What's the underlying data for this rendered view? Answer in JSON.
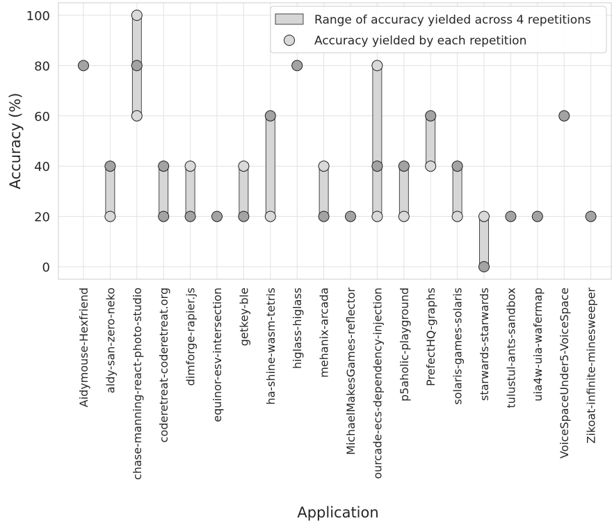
{
  "chart_data": {
    "type": "scatter",
    "xlabel": "Application",
    "ylabel": "Accuracy (%)",
    "ylim": [
      -5,
      105
    ],
    "yticks": [
      0,
      20,
      40,
      60,
      80,
      100
    ],
    "grid": true,
    "legend_position": "top-right",
    "legend": {
      "range": "Range of accuracy yielded across 4 repetitions",
      "points": "Accuracy yielded by each repetition"
    },
    "colors": {
      "range_fill": "#d6d6d6",
      "point_fill": "#d9d9d9",
      "point_overlap_fill": "#a3a3a3",
      "edge": "#1f1f1f",
      "grid": "#e1e1e1",
      "spine": "#cccccc"
    },
    "categories": [
      "Aidymouse-Hexfriend",
      "aldy-san-zero-neko",
      "chase-manning-react-photo-studio",
      "coderetreat-coderetreat.org",
      "dimforge-rapier.js",
      "equinor-esv-intersection",
      "getkey-ble",
      "ha-shine-wasm-tetris",
      "higlass-higlass",
      "mehanix-arcada",
      "MichaelMakesGames-reflector",
      "ourcade-ecs-dependency-injection",
      "p5aholic-playground",
      "PrefectHQ-graphs",
      "solaris-games-solaris",
      "starwards-starwards",
      "tulustul-ants-sandbox",
      "uia4w-uia-wafermap",
      "VoiceSpaceUnder5-VoiceSpace",
      "Zikoat-infinite-minesweeper"
    ],
    "series": [
      {
        "name": "Accuracy yielded by each repetition",
        "values": [
          [
            80,
            80,
            80,
            80
          ],
          [
            20,
            40,
            40,
            40
          ],
          [
            60,
            80,
            80,
            100
          ],
          [
            20,
            20,
            40,
            40
          ],
          [
            20,
            20,
            20,
            40
          ],
          [
            20,
            20,
            20,
            20
          ],
          [
            20,
            20,
            20,
            40
          ],
          [
            20,
            60,
            60,
            60
          ],
          [
            80,
            80,
            80,
            80
          ],
          [
            20,
            20,
            20,
            40
          ],
          [
            20,
            20,
            20,
            20
          ],
          [
            20,
            40,
            40,
            80
          ],
          [
            20,
            40,
            40,
            40
          ],
          [
            40,
            60,
            60,
            60
          ],
          [
            20,
            40,
            40,
            40
          ],
          [
            0,
            0,
            0,
            20
          ],
          [
            20,
            20,
            20,
            20
          ],
          [
            20,
            20,
            20,
            20
          ],
          [
            60,
            60,
            60,
            60
          ],
          [
            20,
            20,
            20,
            20
          ]
        ]
      }
    ]
  }
}
